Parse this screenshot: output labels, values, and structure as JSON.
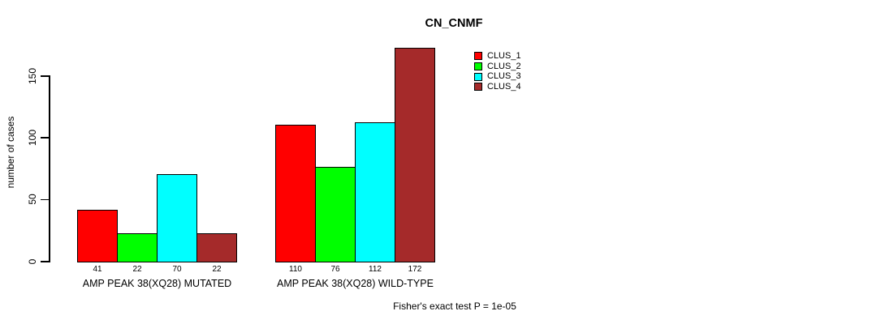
{
  "chart_data": {
    "type": "bar",
    "title": "CN_CNMF",
    "ylabel": "number of cases",
    "yticks": [
      0,
      50,
      100,
      150
    ],
    "ylim": [
      0,
      175
    ],
    "grid": false,
    "legend_position": "top-right",
    "categories": [
      "AMP PEAK 38(XQ28) MUTATED",
      "AMP PEAK 38(XQ28) WILD-TYPE"
    ],
    "series": [
      {
        "name": "CLUS_1",
        "color": "#FF0000",
        "values": [
          41,
          110
        ]
      },
      {
        "name": "CLUS_2",
        "color": "#00FF00",
        "values": [
          22,
          76
        ]
      },
      {
        "name": "CLUS_3",
        "color": "#00FFFF",
        "values": [
          70,
          112
        ]
      },
      {
        "name": "CLUS_4",
        "color": "#A52A2A",
        "values": [
          22,
          172
        ]
      }
    ],
    "bar_value_labels": [
      [
        "41",
        "22",
        "70",
        "22"
      ],
      [
        "110",
        "76",
        "112",
        "172"
      ]
    ],
    "annotation": "Fisher's exact test P = 1e-05"
  },
  "colors": {
    "axis": "#000000",
    "background": "#FFFFFF"
  }
}
